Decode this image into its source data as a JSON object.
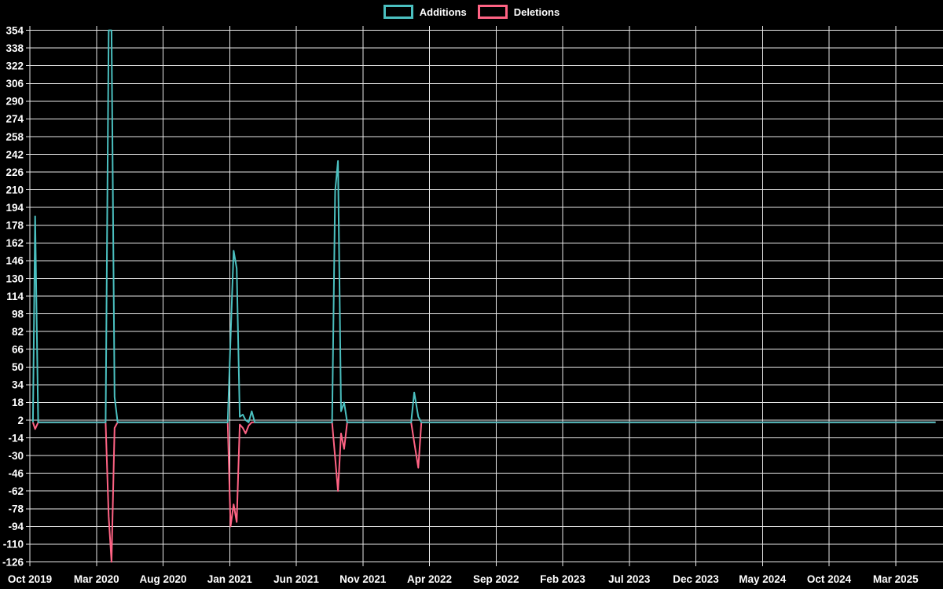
{
  "chart_data": {
    "type": "line",
    "title": "",
    "legend_position": "top",
    "background_color": "#000000",
    "grid_color": "#e9e9e9",
    "text_color": "#ffffff",
    "grid": true,
    "legend": [
      {
        "label": "Additions",
        "color": "#4bc0c0"
      },
      {
        "label": "Deletions",
        "color": "#ff6384"
      }
    ],
    "x_axis": {
      "type": "time",
      "tick_labels": [
        "Oct 2019",
        "Mar 2020",
        "Aug 2020",
        "Jan 2021",
        "Jun 2021",
        "Nov 2021",
        "Apr 2022",
        "Sep 2022",
        "Feb 2023",
        "Jul 2023",
        "Dec 2023",
        "May 2024",
        "Oct 2024",
        "Mar 2025"
      ],
      "tick_interval_months": 5,
      "range_start": "2019-10-01",
      "range_end": "2025-06-01"
    },
    "y_axis": {
      "min": -126,
      "max": 354,
      "tick_step": 16,
      "tick_labels": [
        354,
        338,
        322,
        306,
        290,
        274,
        258,
        242,
        226,
        210,
        194,
        178,
        162,
        146,
        130,
        114,
        98,
        82,
        66,
        50,
        34,
        18,
        2,
        -14,
        -30,
        -46,
        -62,
        -78,
        -94,
        -110,
        -126
      ]
    },
    "x": [
      "2019-10-08",
      "2019-10-13",
      "2019-10-20",
      "2020-03-22",
      "2020-03-29",
      "2020-04-05",
      "2020-04-12",
      "2020-04-19",
      "2020-12-27",
      "2021-01-03",
      "2021-01-10",
      "2021-01-17",
      "2021-01-24",
      "2021-01-31",
      "2021-02-07",
      "2021-02-14",
      "2021-02-21",
      "2021-02-28",
      "2021-08-22",
      "2021-08-29",
      "2021-09-05",
      "2021-09-12",
      "2021-09-19",
      "2021-09-26",
      "2022-02-20",
      "2022-02-27",
      "2022-03-06",
      "2022-03-13",
      "2025-06-01"
    ],
    "series": [
      {
        "name": "Additions",
        "color": "#4bc0c0",
        "values": [
          0,
          186,
          0,
          0,
          354,
          354,
          23,
          0,
          0,
          76,
          155,
          139,
          5,
          7,
          2,
          0,
          10,
          0,
          0,
          209,
          236,
          10,
          18,
          0,
          0,
          27,
          5,
          0,
          0
        ]
      },
      {
        "name": "Deletions",
        "color": "#ff6384",
        "values": [
          0,
          -6,
          0,
          0,
          -85,
          -126,
          -5,
          0,
          0,
          -94,
          -74,
          -90,
          -2,
          -5,
          -10,
          -3,
          0,
          0,
          0,
          -32,
          -62,
          -10,
          -24,
          0,
          0,
          -18,
          -41,
          0,
          0
        ]
      }
    ]
  }
}
